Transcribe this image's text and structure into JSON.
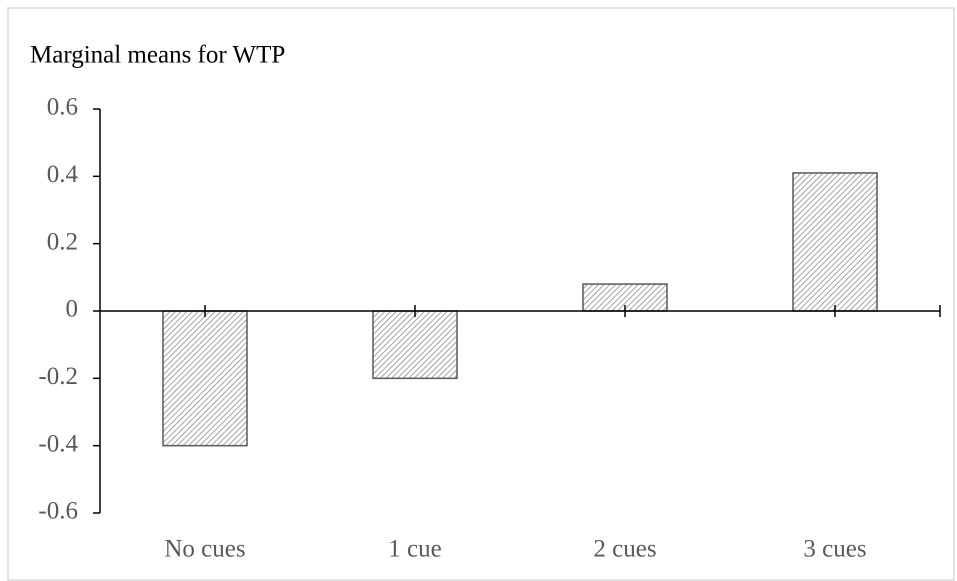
{
  "chart_data": {
    "type": "bar",
    "title": "Marginal means for WTP",
    "categories": [
      "No cues",
      "1 cue",
      "2 cues",
      "3 cues"
    ],
    "values": [
      -0.4,
      -0.2,
      0.08,
      0.41
    ],
    "color": "#7f7f7f",
    "ylim": [
      -0.6,
      0.6
    ],
    "yticks": [
      {
        "value": -0.6,
        "label": "-0.6"
      },
      {
        "value": -0.4,
        "label": "-0.4"
      },
      {
        "value": -0.2,
        "label": "-0.2"
      },
      0,
      {
        "value": 0.2,
        "label": "0.2"
      },
      {
        "value": 0.4,
        "label": "0.4"
      },
      {
        "value": 0.6,
        "label": "0.6"
      }
    ],
    "grid": false
  }
}
